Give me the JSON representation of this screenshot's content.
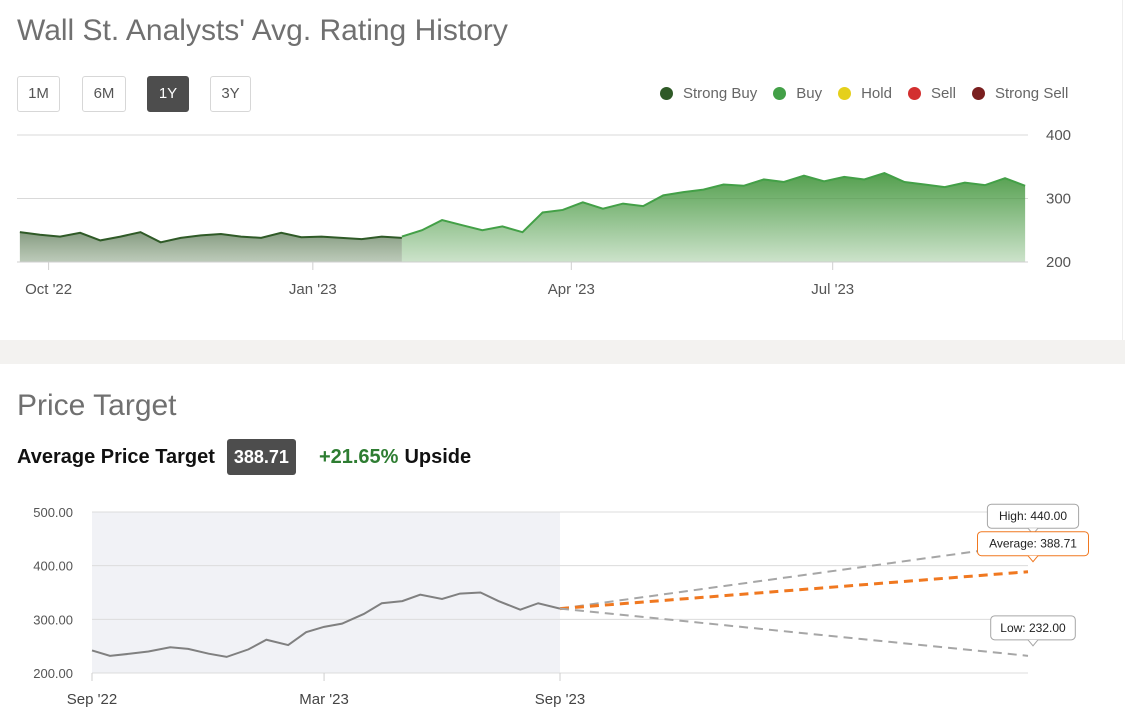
{
  "rating_section": {
    "title": "Wall St. Analysts' Avg. Rating History",
    "range_buttons": [
      "1M",
      "6M",
      "1Y",
      "3Y"
    ],
    "active_range": "1Y",
    "legend": [
      {
        "label": "Strong Buy",
        "color": "#2f5a27"
      },
      {
        "label": "Buy",
        "color": "#43a047"
      },
      {
        "label": "Hold",
        "color": "#e5d01b"
      },
      {
        "label": "Sell",
        "color": "#d32f2f"
      },
      {
        "label": "Strong Sell",
        "color": "#7a1f1f"
      }
    ]
  },
  "target_section": {
    "title": "Price Target",
    "avg_label": "Average Price Target",
    "avg_value": "388.71",
    "upside_pct": "+21.65%",
    "upside_word": "Upside"
  },
  "chart_data": [
    {
      "type": "area",
      "x_ticks": [
        "Oct '22",
        "Jan '23",
        "Apr '23",
        "Jul '23"
      ],
      "y_ticks": [
        "400",
        "300",
        "200"
      ],
      "ylim": [
        200,
        400
      ],
      "grid": true,
      "series": [
        {
          "name": "Strong Buy",
          "color": "#2f5a27",
          "x": [
            "2022-09-21",
            "2022-09-28",
            "2022-10-05",
            "2022-10-12",
            "2022-10-19",
            "2022-10-26",
            "2022-11-02",
            "2022-11-09",
            "2022-11-16",
            "2022-11-23",
            "2022-11-30",
            "2022-12-07",
            "2022-12-14",
            "2022-12-21",
            "2022-12-28",
            "2023-01-04",
            "2023-01-11",
            "2023-01-18",
            "2023-01-25",
            "2023-02-01"
          ],
          "values": [
            247,
            243,
            240,
            246,
            234,
            240,
            247,
            231,
            238,
            242,
            244,
            240,
            238,
            246,
            239,
            240,
            238,
            236,
            240,
            238
          ]
        },
        {
          "name": "Buy",
          "color": "#43a047",
          "x": [
            "2023-02-01",
            "2023-02-08",
            "2023-02-15",
            "2023-02-22",
            "2023-03-01",
            "2023-03-08",
            "2023-03-15",
            "2023-03-22",
            "2023-03-29",
            "2023-04-05",
            "2023-04-12",
            "2023-04-19",
            "2023-04-26",
            "2023-05-03",
            "2023-05-10",
            "2023-05-17",
            "2023-05-24",
            "2023-05-31",
            "2023-06-07",
            "2023-06-14",
            "2023-06-21",
            "2023-06-28",
            "2023-07-05",
            "2023-07-12",
            "2023-07-19",
            "2023-07-26",
            "2023-08-02",
            "2023-08-09",
            "2023-08-16",
            "2023-08-23",
            "2023-08-30",
            "2023-09-06"
          ],
          "values": [
            240,
            250,
            266,
            258,
            250,
            256,
            247,
            278,
            282,
            294,
            284,
            292,
            288,
            305,
            310,
            314,
            322,
            320,
            330,
            326,
            336,
            327,
            334,
            330,
            340,
            326,
            322,
            318,
            325,
            321,
            332,
            320
          ]
        }
      ]
    },
    {
      "type": "line",
      "x_ticks": [
        "Sep '22",
        "Mar '23",
        "Sep '23"
      ],
      "y_ticks": [
        "500.00",
        "400.00",
        "300.00",
        "200.00"
      ],
      "ylim": [
        200,
        500
      ],
      "grid": true,
      "series": [
        {
          "name": "Price",
          "color": "#808080",
          "x": [
            "2022-09-01",
            "2022-09-15",
            "2022-10-01",
            "2022-10-15",
            "2022-11-01",
            "2022-11-15",
            "2022-12-01",
            "2022-12-15",
            "2023-01-01",
            "2023-01-15",
            "2023-02-01",
            "2023-02-15",
            "2023-03-01",
            "2023-03-15",
            "2023-04-01",
            "2023-04-15",
            "2023-05-01",
            "2023-05-15",
            "2023-06-01",
            "2023-06-15",
            "2023-07-01",
            "2023-07-15",
            "2023-08-01",
            "2023-08-15",
            "2023-09-01"
          ],
          "values": [
            242,
            232,
            236,
            240,
            248,
            245,
            236,
            230,
            244,
            262,
            252,
            276,
            286,
            292,
            310,
            330,
            334,
            346,
            338,
            348,
            350,
            334,
            318,
            330,
            320
          ]
        }
      ],
      "targets": [
        {
          "label": "High",
          "value": "440.00",
          "color": "#a6a6a6"
        },
        {
          "label": "Average",
          "value": "388.71",
          "color": "#f07820"
        },
        {
          "label": "Low",
          "value": "232.00",
          "color": "#a6a6a6"
        }
      ],
      "current_price": 320
    }
  ]
}
